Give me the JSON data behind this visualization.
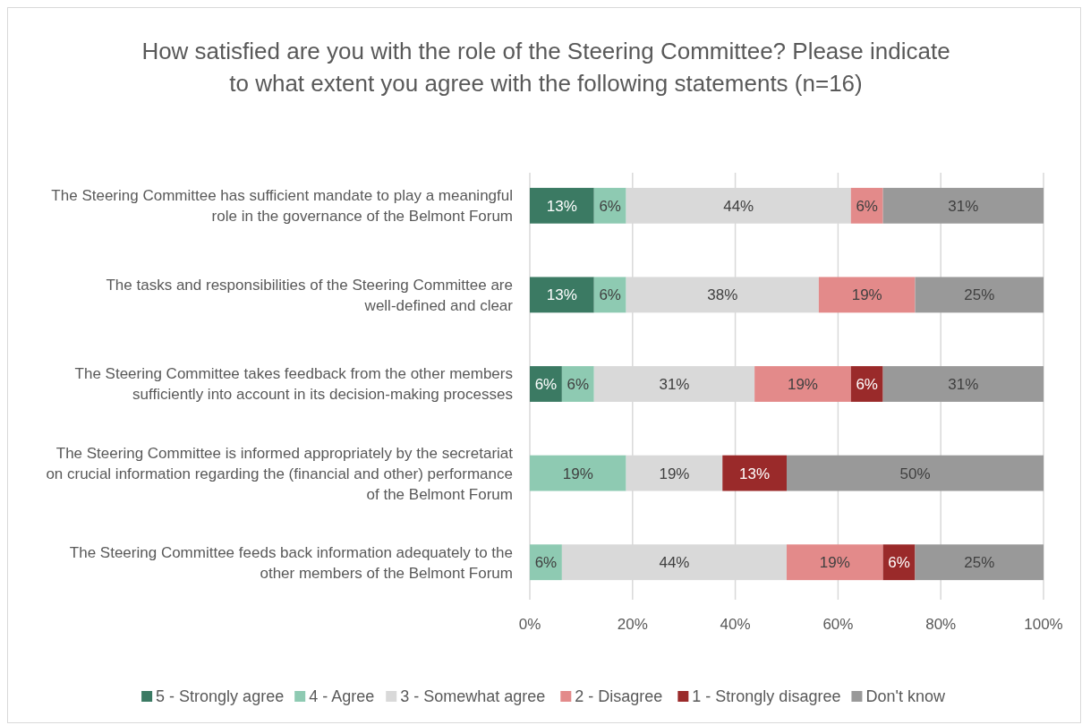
{
  "chart_data": {
    "type": "bar",
    "orientation": "horizontal",
    "stacked": true,
    "title": "How satisfied are you with the role of the Steering Committee? Please indicate to what extent you agree with the following statements (n=16)",
    "categories": [
      "The Steering Committee has sufficient mandate to play a meaningful role in the governance of the Belmont Forum",
      "The tasks and responsibilities of the Steering Committee are well-defined and clear",
      "The Steering Committee takes feedback from the other members sufficiently into account in its decision-making processes",
      "The Steering Committee is informed appropriately by the secretariat on crucial information regarding the (financial and other) performance of the Belmont Forum",
      "The Steering Committee feeds back information adequately to the other members of the Belmont Forum"
    ],
    "series": [
      {
        "name": "5 - Strongly agree",
        "color": "#3b7a63",
        "values": [
          12.5,
          12.5,
          6.25,
          null,
          null
        ],
        "value_labels": [
          "13%",
          "13%",
          "6%",
          null,
          null
        ]
      },
      {
        "name": "4 - Agree",
        "color": "#8ecab2",
        "values": [
          6.25,
          6.25,
          6.25,
          18.75,
          6.25
        ],
        "value_labels": [
          "6%",
          "6%",
          "6%",
          "19%",
          "6%"
        ]
      },
      {
        "name": "3 -  Somewhat agree",
        "color": "#d9d9d9",
        "values": [
          43.75,
          37.5,
          31.25,
          18.75,
          43.75
        ],
        "value_labels": [
          "44%",
          "38%",
          "31%",
          "19%",
          "44%"
        ]
      },
      {
        "name": "2 -  Disagree",
        "color": "#e38a8a",
        "values": [
          6.25,
          18.75,
          18.75,
          null,
          18.75
        ],
        "value_labels": [
          "6%",
          "19%",
          "19%",
          null,
          "19%"
        ]
      },
      {
        "name": "1 - Strongly disagree",
        "color": "#9a2a2a",
        "values": [
          null,
          null,
          6.25,
          12.5,
          6.25
        ],
        "value_labels": [
          null,
          null,
          "6%",
          "13%",
          "6%"
        ]
      },
      {
        "name": "Don't know",
        "color": "#999999",
        "values": [
          31.25,
          25,
          31.25,
          50,
          25
        ],
        "value_labels": [
          "31%",
          "25%",
          "31%",
          "50%",
          "25%"
        ]
      }
    ],
    "xlim": [
      0,
      100
    ],
    "xticks": [
      {
        "value": 0,
        "label": "0%"
      },
      {
        "value": 20,
        "label": "20%"
      },
      {
        "value": 40,
        "label": "40%"
      },
      {
        "value": 60,
        "label": "60%"
      },
      {
        "value": 80,
        "label": "80%"
      },
      {
        "value": 100,
        "label": "100%"
      }
    ],
    "grid": "x",
    "legend": "bottom"
  }
}
